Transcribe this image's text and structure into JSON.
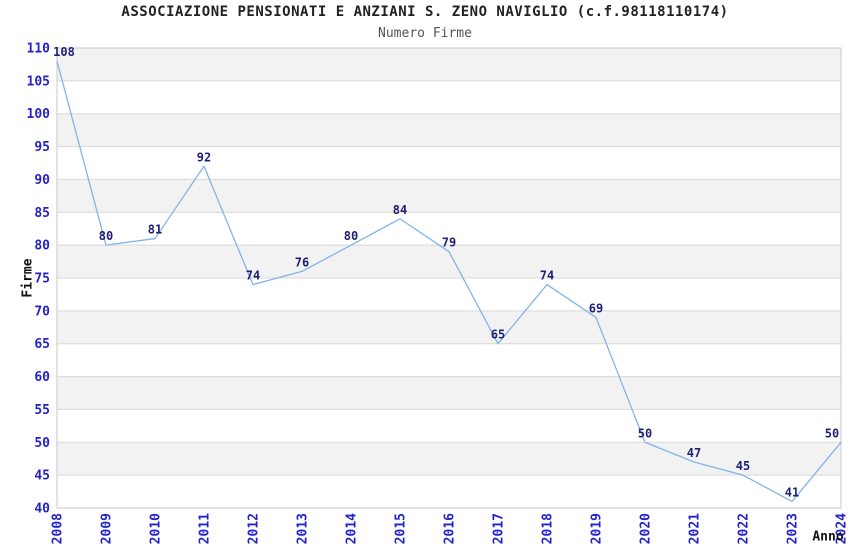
{
  "chart_data": {
    "type": "line",
    "title": "ASSOCIAZIONE PENSIONATI E ANZIANI S. ZENO NAVIGLIO (c.f.98118110174)",
    "subtitle": "Numero Firme",
    "xlabel": "Anno",
    "ylabel": "Firme",
    "categories": [
      "2008",
      "2009",
      "2010",
      "2011",
      "2012",
      "2013",
      "2014",
      "2015",
      "2016",
      "2017",
      "2018",
      "2019",
      "2020",
      "2021",
      "2022",
      "2023",
      "2024"
    ],
    "values": [
      108,
      80,
      81,
      92,
      74,
      76,
      80,
      84,
      79,
      65,
      74,
      69,
      50,
      47,
      45,
      41,
      50
    ],
    "ylim": [
      40,
      110
    ],
    "ytick_step": 5,
    "yticks": [
      110,
      105,
      100,
      95,
      90,
      85,
      80,
      75,
      70,
      65,
      60,
      55,
      50,
      45,
      40
    ],
    "grid": "horizontal",
    "legend": "none",
    "point_labels_visible": true,
    "colors": {
      "line": "#83b4e8",
      "tick_label": "#2323cc",
      "point_label": "#1f1f78",
      "band_gray": "#f2f2f2",
      "band_white": "#ffffff",
      "gridline": "#d9d9d9",
      "plot_border": "#c9c9c9",
      "title": "#222222",
      "subtitle": "#555555",
      "axis_title": "#111111",
      "background": "#ffffff"
    }
  }
}
